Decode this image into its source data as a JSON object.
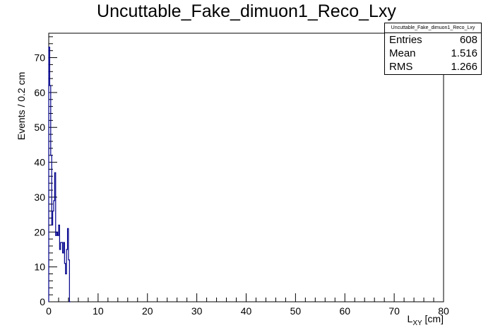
{
  "chart_data": {
    "type": "histogram",
    "title": "Uncuttable_Fake_dimuon1_Reco_Lxy",
    "xlabel_main": "L",
    "xlabel_sub": "XY",
    "xlabel_unit": " [cm]",
    "ylabel": "Events / 0.2 cm",
    "xlim": [
      0,
      80
    ],
    "ylim": [
      0,
      77
    ],
    "x_ticks": [
      0,
      10,
      20,
      30,
      40,
      50,
      60,
      70,
      80
    ],
    "y_ticks": [
      0,
      10,
      20,
      30,
      40,
      50,
      60,
      70
    ],
    "bin_width": 0.2,
    "bin_values": [
      73,
      62,
      42,
      22,
      26,
      29,
      37,
      19,
      20,
      19,
      22,
      15,
      17,
      17,
      14,
      17,
      11,
      8,
      15,
      21,
      12,
      0
    ],
    "line_color": "#00008b",
    "grid": false,
    "legend": "none"
  },
  "stats": {
    "name": "Uncuttable_Fake_dimuon1_Reco_Lxy",
    "rows": [
      {
        "label": "Entries",
        "value": "608"
      },
      {
        "label": "Mean",
        "value": "1.516"
      },
      {
        "label": "RMS",
        "value": "1.266"
      }
    ]
  }
}
